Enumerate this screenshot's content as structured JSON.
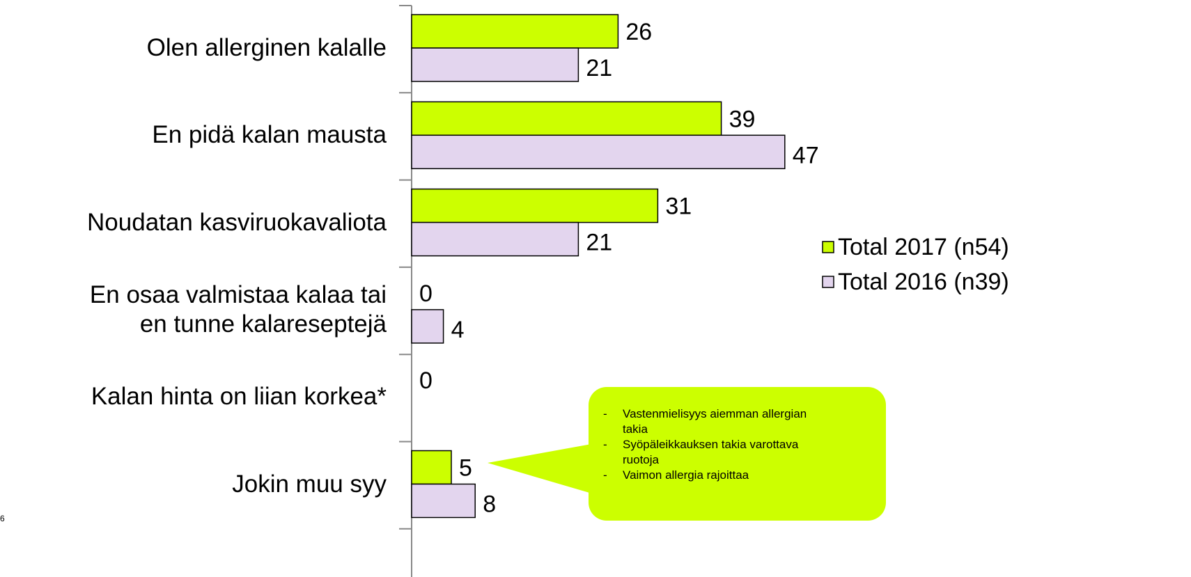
{
  "chart_data": {
    "type": "bar",
    "orientation": "horizontal",
    "categories": [
      "Olen allerginen kalalle",
      "En pidä kalan mausta",
      "Noudatan kasviruokavaliota",
      "En osaa valmistaa kalaa tai\nen tunne kalareseptejä",
      "Kalan hinta on liian korkea*",
      "Jokin muu syy"
    ],
    "series": [
      {
        "name": "Total 2017 (n54)",
        "color": "#ccff00",
        "values": [
          26,
          39,
          31,
          0,
          0,
          5
        ]
      },
      {
        "name": "Total 2016 (n39)",
        "color": "#e3d5ee",
        "values": [
          21,
          47,
          21,
          4,
          null,
          8
        ]
      }
    ],
    "legend": "right",
    "annotation": {
      "items": [
        "Vastenmielisyys aiemman allergian takia",
        "Syöpäleikkauksen takia varottava ruotoja",
        "Vaimon allergia rajoittaa"
      ]
    },
    "page_number": "6"
  }
}
